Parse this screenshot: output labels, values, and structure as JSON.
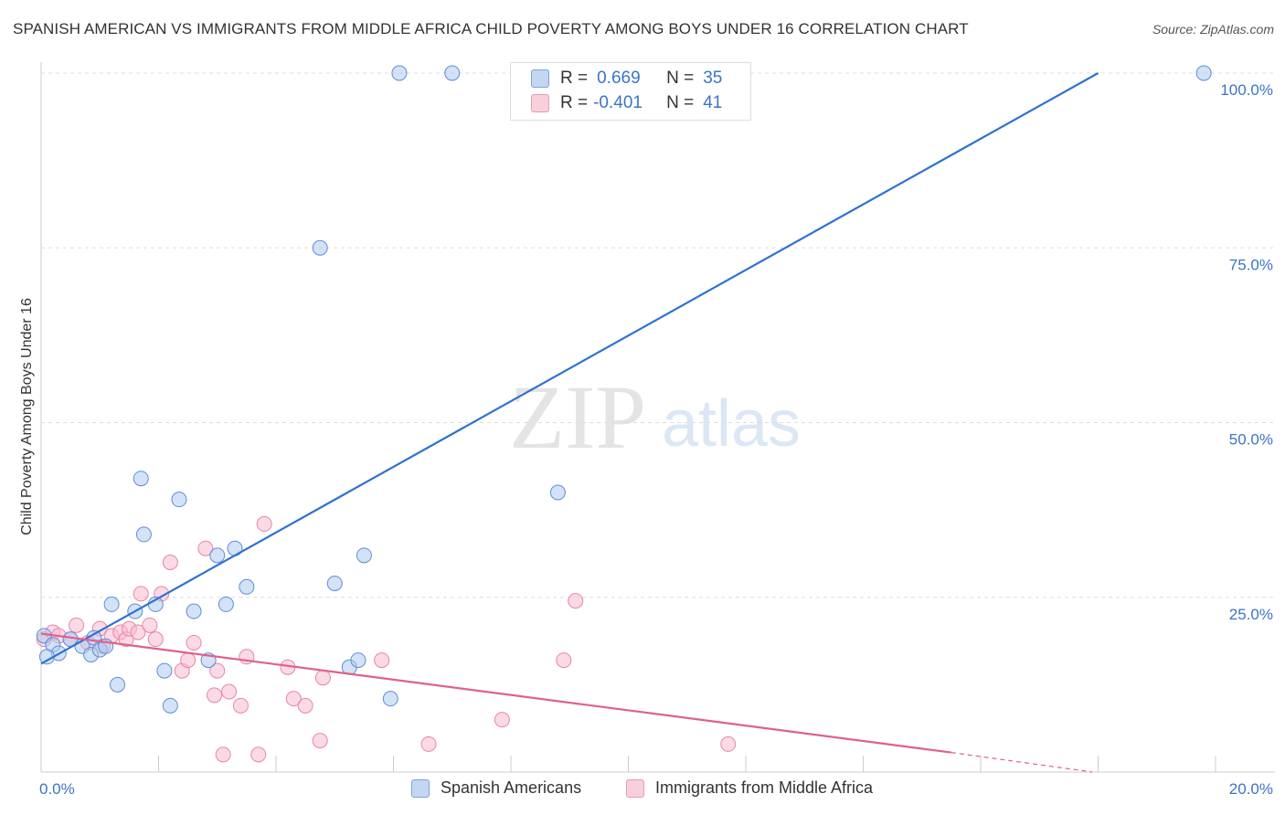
{
  "title": "SPANISH AMERICAN VS IMMIGRANTS FROM MIDDLE AFRICA CHILD POVERTY AMONG BOYS UNDER 16 CORRELATION CHART",
  "source": "Source: ZipAtlas.com",
  "watermark": {
    "zip": "ZIP",
    "atlas": "atlas"
  },
  "legend_top": {
    "rows": [
      {
        "r_label": "R =",
        "r_value": "0.669",
        "n_label": "N =",
        "n_value": "35"
      },
      {
        "r_label": "R =",
        "r_value": "-0.401",
        "n_label": "N =",
        "n_value": "41"
      }
    ]
  },
  "legend_bottom": {
    "items": [
      "Spanish Americans",
      "Immigrants from Middle Africa"
    ]
  },
  "colors": {
    "blue_fill": "#aecbf0",
    "blue_stroke": "#5b8fd6",
    "blue_line": "#2f72d0",
    "pink_fill": "#f7bcd0",
    "pink_stroke": "#e885a5",
    "pink_line": "#e0608c",
    "tick_text": "#3b74c7",
    "grid": "#dddddd"
  },
  "chart_data": {
    "type": "scatter",
    "title": "SPANISH AMERICAN VS IMMIGRANTS FROM MIDDLE AFRICA CHILD POVERTY AMONG BOYS UNDER 16 CORRELATION CHART",
    "xlabel": "",
    "ylabel": "Child Poverty Among Boys Under 16",
    "xlim": [
      0,
      20
    ],
    "ylim": [
      0,
      100
    ],
    "x_tick_labels": [
      "0.0%",
      "20.0%"
    ],
    "y_ticks": [
      25,
      50,
      75,
      100
    ],
    "y_tick_labels": [
      "25.0%",
      "50.0%",
      "75.0%",
      "100.0%"
    ],
    "series": [
      {
        "name": "Spanish Americans",
        "r": 0.669,
        "n": 35,
        "trend": {
          "x": [
            0,
            18.0
          ],
          "y": [
            15.5,
            100
          ]
        },
        "points": [
          [
            0.05,
            19.5
          ],
          [
            0.2,
            18.2
          ],
          [
            0.3,
            17.0
          ],
          [
            0.5,
            19.0
          ],
          [
            0.7,
            18.0
          ],
          [
            0.85,
            16.8
          ],
          [
            0.9,
            19.2
          ],
          [
            1.0,
            17.5
          ],
          [
            1.1,
            18.0
          ],
          [
            1.2,
            24.0
          ],
          [
            1.3,
            12.5
          ],
          [
            1.6,
            23.0
          ],
          [
            1.7,
            42.0
          ],
          [
            1.75,
            34.0
          ],
          [
            1.95,
            24.0
          ],
          [
            2.1,
            14.5
          ],
          [
            2.2,
            9.5
          ],
          [
            2.35,
            39.0
          ],
          [
            2.6,
            23.0
          ],
          [
            2.85,
            16.0
          ],
          [
            3.0,
            31.0
          ],
          [
            3.15,
            24.0
          ],
          [
            3.3,
            32.0
          ],
          [
            3.5,
            26.5
          ],
          [
            4.75,
            75.0
          ],
          [
            5.0,
            27.0
          ],
          [
            5.25,
            15.0
          ],
          [
            5.4,
            16.0
          ],
          [
            5.5,
            31.0
          ],
          [
            5.95,
            10.5
          ],
          [
            6.1,
            100.0
          ],
          [
            7.0,
            100.0
          ],
          [
            8.8,
            40.0
          ],
          [
            19.8,
            100.0
          ],
          [
            0.1,
            16.5
          ]
        ]
      },
      {
        "name": "Immigrants from Middle Africa",
        "r": -0.401,
        "n": 41,
        "trend": {
          "x": [
            0,
            15.5
          ],
          "y": [
            19.8,
            2.8
          ]
        },
        "trend_dashed": {
          "x": [
            15.5,
            17.9
          ],
          "y": [
            2.8,
            0
          ]
        },
        "points": [
          [
            0.05,
            19.0
          ],
          [
            0.2,
            20.0
          ],
          [
            0.3,
            19.5
          ],
          [
            0.5,
            19.0
          ],
          [
            0.6,
            21.0
          ],
          [
            0.8,
            18.5
          ],
          [
            1.0,
            20.5
          ],
          [
            1.05,
            18.0
          ],
          [
            1.2,
            19.5
          ],
          [
            1.35,
            20.0
          ],
          [
            1.45,
            19.0
          ],
          [
            1.5,
            20.5
          ],
          [
            1.65,
            20.0
          ],
          [
            1.7,
            25.5
          ],
          [
            1.85,
            21.0
          ],
          [
            1.95,
            19.0
          ],
          [
            2.05,
            25.5
          ],
          [
            2.2,
            30.0
          ],
          [
            2.4,
            14.5
          ],
          [
            2.5,
            16.0
          ],
          [
            2.6,
            18.5
          ],
          [
            2.8,
            32.0
          ],
          [
            2.95,
            11.0
          ],
          [
            3.0,
            14.5
          ],
          [
            3.2,
            11.5
          ],
          [
            3.1,
            2.5
          ],
          [
            3.4,
            9.5
          ],
          [
            3.5,
            16.5
          ],
          [
            3.7,
            2.5
          ],
          [
            3.8,
            35.5
          ],
          [
            4.2,
            15.0
          ],
          [
            4.3,
            10.5
          ],
          [
            4.5,
            9.5
          ],
          [
            4.75,
            4.5
          ],
          [
            4.8,
            13.5
          ],
          [
            5.8,
            16.0
          ],
          [
            6.6,
            4.0
          ],
          [
            7.85,
            7.5
          ],
          [
            8.9,
            16.0
          ],
          [
            9.1,
            24.5
          ],
          [
            11.7,
            4.0
          ]
        ]
      }
    ]
  }
}
